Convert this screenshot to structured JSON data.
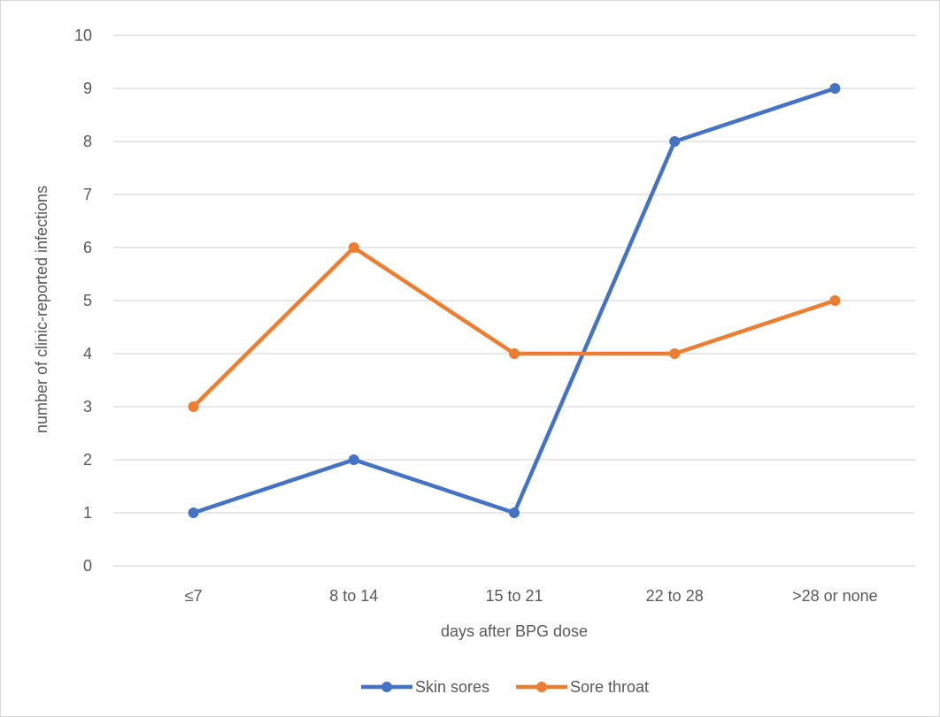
{
  "chart_data": {
    "type": "line",
    "title": "",
    "xlabel": "days after BPG dose",
    "ylabel": "number of clinic-reported infections",
    "categories": [
      "≤7",
      "8 to 14",
      "15 to 21",
      "22 to 28",
      ">28 or none"
    ],
    "ylim": [
      0,
      10
    ],
    "yticks": [
      "0",
      "1",
      "2",
      "3",
      "4",
      "5",
      "6",
      "7",
      "8",
      "9",
      "10"
    ],
    "grid": "horizontal",
    "legend_position": "bottom",
    "series": [
      {
        "name": "Skin sores",
        "color": "#4472C4",
        "values": [
          1,
          2,
          1,
          8,
          9
        ]
      },
      {
        "name": "Sore throat",
        "color": "#ED7D31",
        "values": [
          3,
          6,
          4,
          4,
          5
        ]
      }
    ],
    "colors": {
      "gridline": "#D9D9D9",
      "text": "#595959",
      "frame": "#D9D9D9"
    }
  }
}
